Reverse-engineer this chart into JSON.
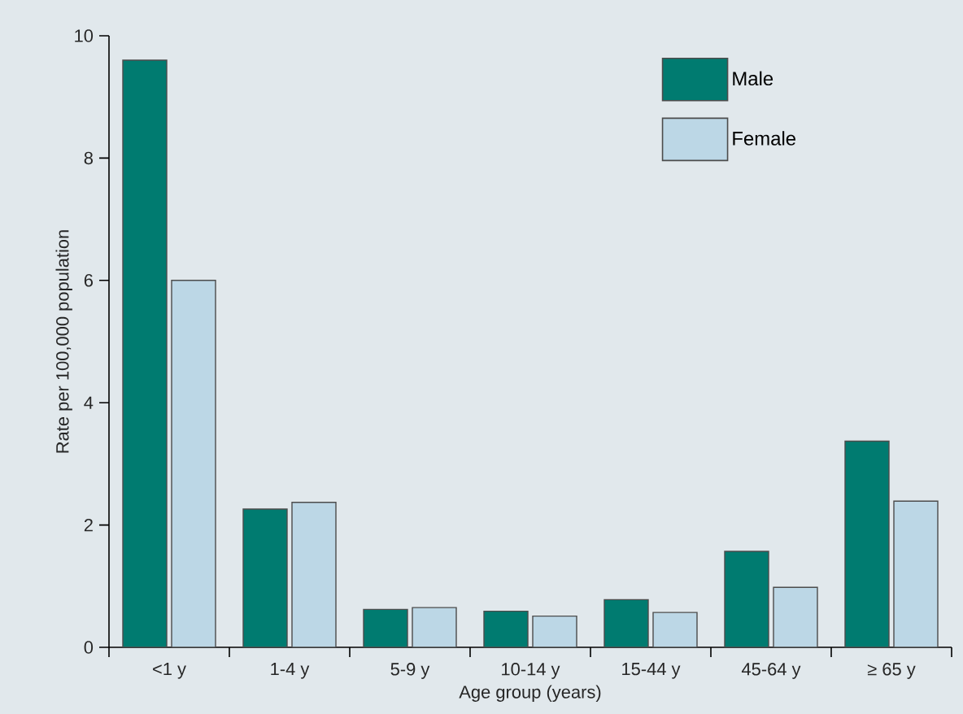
{
  "chart_data": {
    "type": "bar",
    "xlabel": "Age group (years)",
    "ylabel": "Rate per 100,000 population",
    "categories": [
      "<1 y",
      "1-4 y",
      "5-9 y",
      "10-14 y",
      "15-44 y",
      "45-64 y",
      "≥ 65 y"
    ],
    "series": [
      {
        "name": "Male",
        "color": "#007b70",
        "values": [
          9.6,
          2.26,
          0.62,
          0.59,
          0.78,
          1.57,
          3.37
        ]
      },
      {
        "name": "Female",
        "color": "#bcd7e6",
        "values": [
          6.0,
          2.37,
          0.65,
          0.51,
          0.57,
          0.98,
          2.39
        ]
      }
    ],
    "ylim": [
      0,
      10
    ],
    "yticks": [
      0,
      2,
      4,
      6,
      8,
      10
    ],
    "legend": "top right",
    "grid": false
  }
}
